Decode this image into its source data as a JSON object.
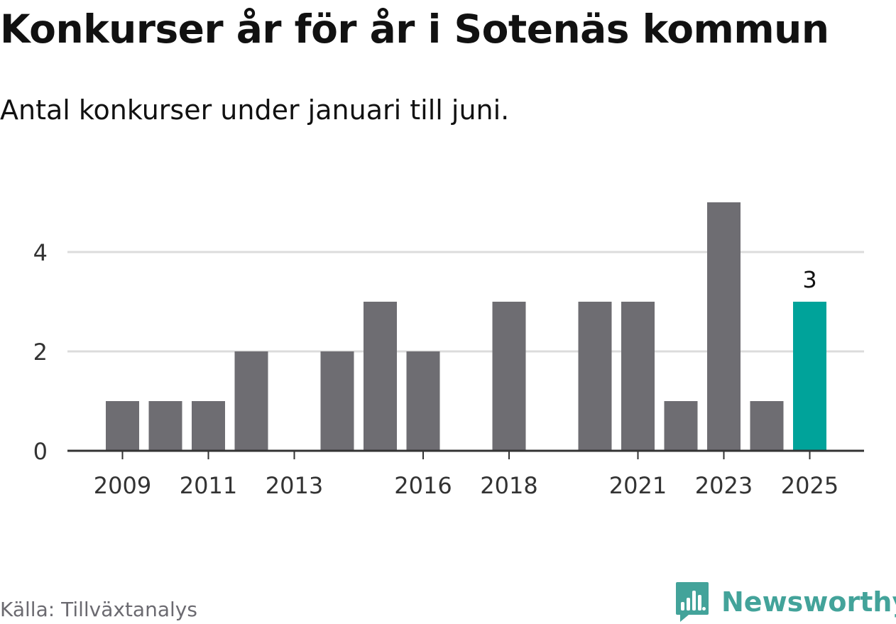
{
  "title": "Konkurser år för år i Sotenäs kommun",
  "subtitle": "Antal konkurser under januari till juni.",
  "source": "Källa: Tillväxtanalys",
  "brand": {
    "name": "Newsworthy",
    "icon": "newsworthy-logo-icon",
    "color": "#43a39a"
  },
  "colors": {
    "bar": "#6e6d72",
    "highlight": "#00a39a",
    "grid": "#dcdcdc",
    "axis": "#333333"
  },
  "chart_data": {
    "type": "bar",
    "x": [
      2009,
      2010,
      2011,
      2012,
      2013,
      2014,
      2015,
      2016,
      2017,
      2018,
      2019,
      2020,
      2021,
      2022,
      2023,
      2024,
      2025
    ],
    "values": [
      1,
      1,
      1,
      2,
      0,
      2,
      3,
      2,
      0,
      3,
      0,
      3,
      3,
      1,
      5,
      1,
      3
    ],
    "highlight": 2025,
    "data_labels": [
      {
        "x": 2025,
        "label": "3"
      }
    ],
    "x_ticks": [
      "2009",
      "2011",
      "2013",
      "2016",
      "2018",
      "2021",
      "2023",
      "2025"
    ],
    "y_ticks": [
      "0",
      "2",
      "4"
    ],
    "ylim": [
      0,
      5
    ],
    "grid": true
  }
}
